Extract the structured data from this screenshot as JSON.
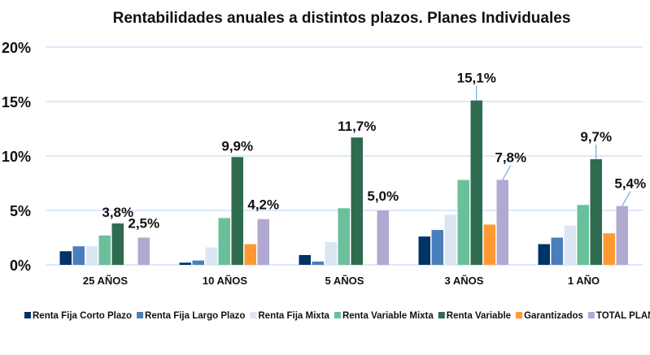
{
  "chart_data": {
    "type": "bar",
    "title": "Rentabilidades anuales a distintos plazos. Planes Individuales",
    "xlabel": "",
    "ylabel": "",
    "ylim": [
      0,
      20
    ],
    "yticks": [
      "0%",
      "5%",
      "10%",
      "15%",
      "20%"
    ],
    "ytick_values": [
      0,
      5,
      10,
      15,
      20
    ],
    "grid": true,
    "legend_position": "bottom",
    "categories": [
      "25 AÑOS",
      "10 AÑOS",
      "5 AÑOS",
      "3 AÑOS",
      "1 AÑO"
    ],
    "series": [
      {
        "name": "Renta Fija Corto Plazo",
        "color": "#003366",
        "values": [
          1.25,
          0.2,
          0.9,
          2.6,
          1.9
        ]
      },
      {
        "name": "Renta Fija Largo Plazo",
        "color": "#4A7EBB",
        "values": [
          1.7,
          0.4,
          0.3,
          3.2,
          2.5
        ]
      },
      {
        "name": "Renta Fija Mixta",
        "color": "#DCE6F2",
        "values": [
          1.7,
          1.6,
          2.1,
          4.6,
          3.6
        ]
      },
      {
        "name": "Renta Variable Mixta",
        "color": "#6AC09A",
        "values": [
          2.7,
          4.3,
          5.2,
          7.8,
          5.5
        ]
      },
      {
        "name": "Renta Variable",
        "color": "#2E6B4F",
        "values": [
          3.8,
          9.9,
          11.7,
          15.1,
          9.7
        ]
      },
      {
        "name": "Garantizados",
        "color": "#FF9933",
        "values": [
          null,
          1.9,
          null,
          3.7,
          2.9
        ]
      },
      {
        "name": "TOTAL PLANES",
        "color": "#B1A9D1",
        "values": [
          2.5,
          4.2,
          5.0,
          7.8,
          5.4
        ]
      }
    ],
    "data_labels": {
      "Renta Variable": [
        "3,8%",
        "9,9%",
        "11,7%",
        "15,1%",
        "9,7%"
      ],
      "TOTAL PLANES": [
        "2,5%",
        "4,2%",
        "5,0%",
        "7,8%",
        "5,4%"
      ]
    }
  }
}
